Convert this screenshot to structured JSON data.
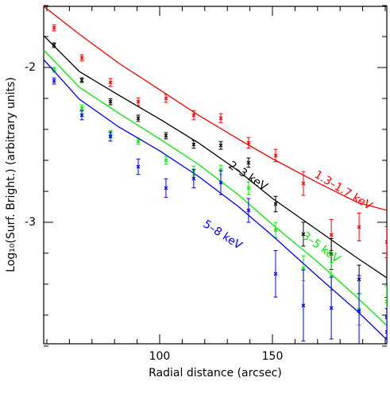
{
  "chart_data": {
    "type": "scatter",
    "x_label": "Radial distance (arcsec)",
    "y_label": "Log₁₀(Surf. Bright.) (arbitrary units)",
    "xlim": [
      48.6,
      200.7
    ],
    "ylim": [
      -3.785,
      -1.605
    ],
    "xticks": [
      100,
      150
    ],
    "yticks": [
      -3,
      -2
    ],
    "xminor": [
      50,
      60,
      70,
      80,
      90,
      110,
      120,
      130,
      140,
      160,
      170,
      180,
      190,
      200
    ],
    "yminor": [
      -3.8,
      -3.6,
      -3.4,
      -3.2,
      -2.8,
      -2.6,
      -2.4,
      -2.2,
      -1.8,
      -1.6
    ],
    "x": [
      53.2,
      65.5,
      78.2,
      90.5,
      102.8,
      115.1,
      127.1,
      139.4,
      151.4,
      163.7,
      176.1,
      188.4,
      200.7
    ],
    "model_x": [
      48.6,
      64.4,
      82,
      100,
      117.2,
      134.8,
      150,
      170,
      187.6,
      200.7
    ],
    "series": [
      {
        "name": "1.3–1.7 keV",
        "color": "#ff0000",
        "values": [
          -1.744,
          -1.938,
          -2.097,
          -2.221,
          -2.2,
          -2.308,
          -2.328,
          -2.487,
          -2.569,
          -2.749,
          -3.082,
          -3.031,
          -3.128
        ],
        "errors": [
          0.02,
          0.02,
          0.025,
          0.025,
          0.025,
          0.03,
          0.03,
          0.035,
          0.04,
          0.077,
          0.1,
          0.09,
          0.1
        ],
        "model": [
          -1.605,
          -1.785,
          -1.974,
          -2.144,
          -2.308,
          -2.462,
          -2.59,
          -2.744,
          -2.872,
          -2.923
        ]
      },
      {
        "name": "2–3 keV",
        "color": "#000000",
        "values": [
          -1.856,
          -2.082,
          -2.221,
          -2.328,
          -2.441,
          -2.497,
          -2.503,
          -2.615,
          -2.882,
          -3.077,
          -3.205,
          -3.369,
          -3.615
        ],
        "errors": [
          0.015,
          0.015,
          0.02,
          0.02,
          0.02,
          0.025,
          0.025,
          0.03,
          0.05,
          0.077,
          0.1,
          0.092,
          0.13
        ],
        "model": [
          -1.795,
          -2.026,
          -2.18,
          -2.333,
          -2.487,
          -2.667,
          -2.846,
          -3.051,
          -3.231,
          -3.359
        ]
      },
      {
        "name": "3–5 keV",
        "color": "#00ee00",
        "values": [
          -2.015,
          -2.262,
          -2.426,
          -2.477,
          -2.6,
          -2.667,
          -2.662,
          -2.779,
          -3.051,
          -3.297,
          -3.349,
          -3.564,
          -3.513
        ],
        "errors": [
          0.015,
          0.02,
          0.02,
          0.02,
          0.025,
          0.03,
          0.03,
          0.04,
          0.05,
          0.08,
          0.09,
          0.1,
          0.1
        ],
        "model": [
          -1.887,
          -2.128,
          -2.297,
          -2.462,
          -2.626,
          -2.821,
          -3.015,
          -3.256,
          -3.487,
          -3.667
        ]
      },
      {
        "name": "5–8 keV",
        "color": "#0000ff",
        "values": [
          -2.087,
          -2.308,
          -2.446,
          -2.641,
          -2.779,
          -2.718,
          -2.744,
          -2.923,
          -3.333,
          -3.538,
          -3.554,
          -3.574,
          -3.708
        ],
        "errors": [
          0.02,
          0.03,
          0.03,
          0.05,
          0.06,
          0.06,
          0.077,
          0.077,
          0.15,
          0.23,
          0.2,
          0.23,
          0.15
        ],
        "model": [
          -1.949,
          -2.205,
          -2.385,
          -2.538,
          -2.703,
          -2.897,
          -3.087,
          -3.349,
          -3.574,
          -3.759
        ]
      }
    ]
  }
}
